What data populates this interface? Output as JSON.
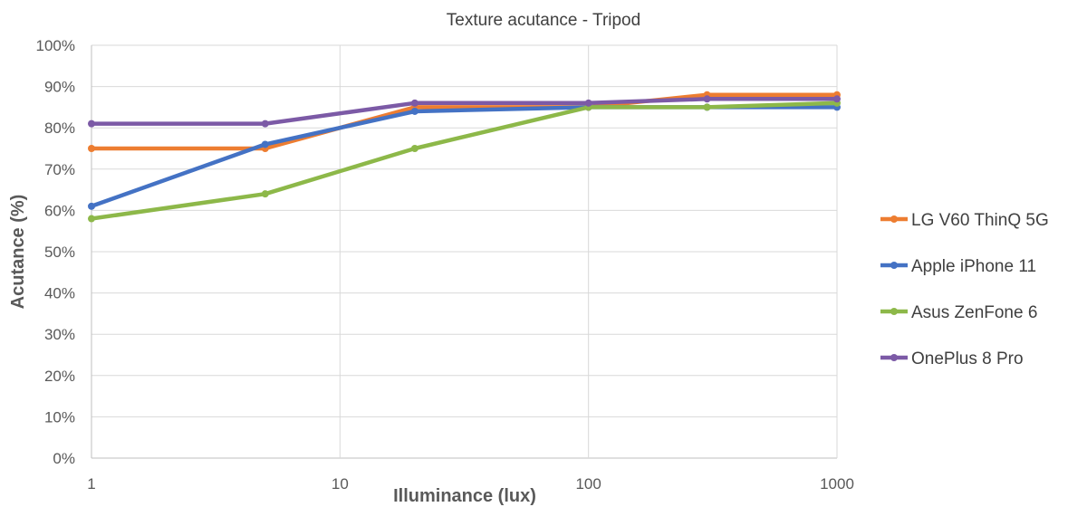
{
  "chart_data": {
    "type": "line",
    "title": "Texture acutance - Tripod",
    "xlabel": "Illuminance (lux)",
    "ylabel": "Acutance (%)",
    "x_scale": "log",
    "x": [
      1,
      5,
      20,
      100,
      300,
      1000
    ],
    "x_ticks": [
      "1",
      "10",
      "100",
      "1000"
    ],
    "xlim": [
      1,
      1000
    ],
    "y_ticks": [
      "0%",
      "10%",
      "20%",
      "30%",
      "40%",
      "50%",
      "60%",
      "70%",
      "80%",
      "90%",
      "100%"
    ],
    "ylim": [
      0,
      100
    ],
    "grid": true,
    "legend_position": "right",
    "series": [
      {
        "name": "LG V60 ThinQ 5G",
        "color": "#ED7D31",
        "values": [
          75,
          75,
          85,
          85,
          88,
          88
        ]
      },
      {
        "name": "Apple iPhone 11",
        "color": "#4472C4",
        "values": [
          61,
          76,
          84,
          85,
          85,
          85
        ]
      },
      {
        "name": "Asus ZenFone 6",
        "color": "#8DB849",
        "values": [
          58,
          64,
          75,
          85,
          85,
          86
        ]
      },
      {
        "name": "OnePlus 8 Pro",
        "color": "#7C5AA6",
        "values": [
          81,
          81,
          86,
          86,
          87,
          87
        ]
      }
    ]
  }
}
